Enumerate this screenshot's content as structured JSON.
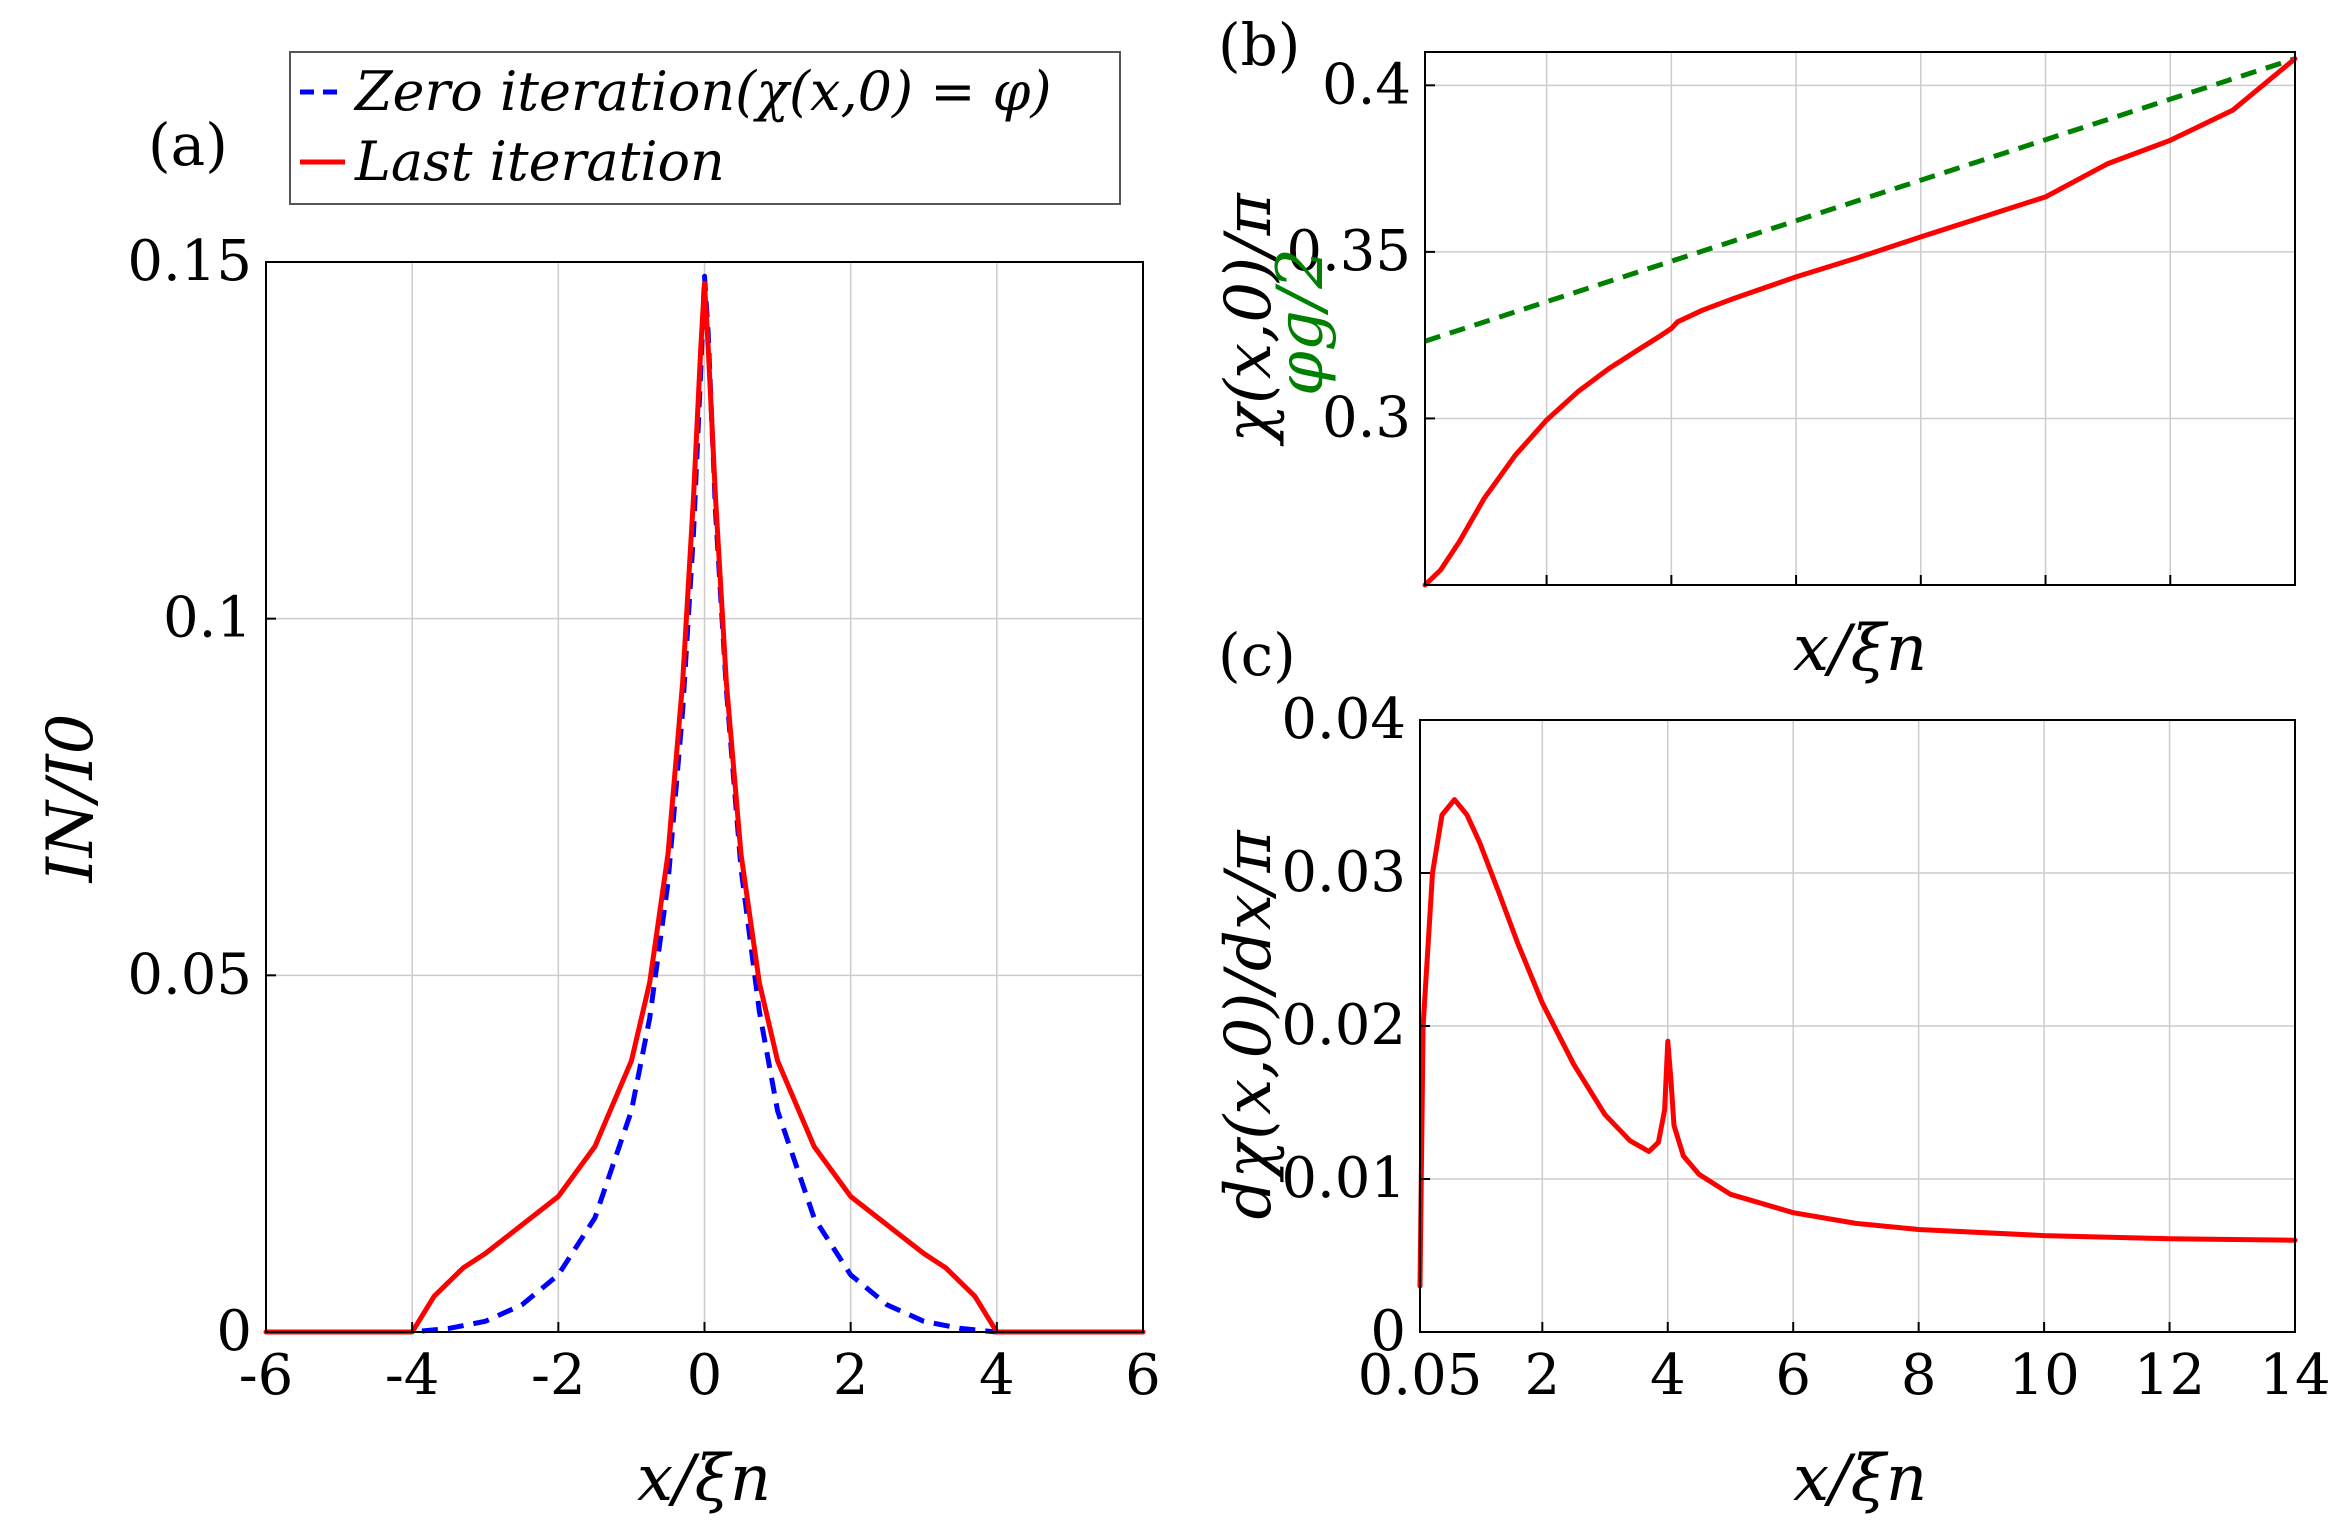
{
  "chart_data": [
    {
      "panel_label": "(a)",
      "type": "line",
      "xlabel": "x/ξn",
      "ylabel": "IN/I0",
      "xlim": [
        -6,
        6
      ],
      "ylim": [
        0,
        0.15
      ],
      "xticks": [
        -6,
        -4,
        -2,
        0,
        2,
        4,
        6
      ],
      "xtick_labels": [
        "-6",
        "-4",
        "-2",
        "0",
        "2",
        "4",
        "6"
      ],
      "yticks": [
        0,
        0.05,
        0.1,
        0.15
      ],
      "ytick_labels": [
        "0",
        "0.05",
        "0.1",
        "0.15"
      ],
      "grid": true,
      "legend": {
        "position": "top",
        "entries": [
          {
            "label": "Zero iteration(χ(x,0) = φ)",
            "color": "#0000ff",
            "style": "dashed"
          },
          {
            "label": "Last iteration",
            "color": "#ff0000",
            "style": "solid"
          }
        ]
      },
      "series": [
        {
          "name": "Zero iteration",
          "color": "#0000ff",
          "style": "dashed",
          "x": [
            -6,
            -4,
            -3.5,
            -3,
            -2.5,
            -2,
            -1.5,
            -1,
            -0.75,
            -0.5,
            -0.3,
            -0.15,
            -0.05,
            0,
            0.05,
            0.15,
            0.3,
            0.5,
            0.75,
            1,
            1.5,
            2,
            2.5,
            3,
            3.5,
            4,
            6
          ],
          "y": [
            0,
            0,
            0.0005,
            0.0015,
            0.0038,
            0.008,
            0.016,
            0.031,
            0.044,
            0.063,
            0.087,
            0.112,
            0.135,
            0.148,
            0.14,
            0.115,
            0.09,
            0.065,
            0.045,
            0.031,
            0.016,
            0.008,
            0.0038,
            0.0015,
            0.0005,
            0,
            0
          ]
        },
        {
          "name": "Last iteration",
          "color": "#ff0000",
          "style": "solid",
          "x": [
            -6,
            -4,
            -3.7,
            -3.3,
            -3,
            -2.5,
            -2,
            -1.5,
            -1,
            -0.75,
            -0.5,
            -0.3,
            -0.15,
            -0.05,
            0,
            0.05,
            0.15,
            0.3,
            0.5,
            0.75,
            1,
            1.5,
            2,
            2.5,
            3,
            3.3,
            3.7,
            4,
            6
          ],
          "y": [
            0,
            0,
            0.005,
            0.009,
            0.011,
            0.015,
            0.019,
            0.026,
            0.038,
            0.049,
            0.067,
            0.091,
            0.117,
            0.138,
            0.147,
            0.138,
            0.117,
            0.091,
            0.067,
            0.049,
            0.038,
            0.026,
            0.019,
            0.015,
            0.011,
            0.009,
            0.005,
            0,
            0
          ]
        }
      ]
    },
    {
      "panel_label": "(b)",
      "type": "line",
      "xlabel": "x/ξn",
      "ylabel": "χ(x,0)/π",
      "xlim": [
        0.05,
        14
      ],
      "ylim": [
        0.25,
        0.41
      ],
      "xticks": [
        0.05,
        2,
        4,
        6,
        8,
        10,
        12,
        14
      ],
      "yticks": [
        0.3,
        0.35,
        0.4
      ],
      "ytick_labels": [
        "0.3",
        "0.35",
        "0.4"
      ],
      "grid": true,
      "annotation": "φg/2",
      "series": [
        {
          "name": "asymptote",
          "color": "#008000",
          "style": "dashed",
          "x": [
            0.05,
            14
          ],
          "y": [
            0.3232,
            0.408
          ]
        },
        {
          "name": "χ",
          "color": "#ff0000",
          "style": "solid",
          "x": [
            0.05,
            0.3,
            0.6,
            1,
            1.5,
            2,
            2.5,
            3,
            3.5,
            3.8,
            4,
            4.1,
            4.5,
            5,
            6,
            7,
            8,
            9,
            10,
            11,
            12,
            13,
            14
          ],
          "y": [
            0.25,
            0.2545,
            0.263,
            0.276,
            0.289,
            0.2995,
            0.308,
            0.315,
            0.321,
            0.3245,
            0.327,
            0.329,
            0.3325,
            0.336,
            0.3425,
            0.3483,
            0.3545,
            0.3605,
            0.3665,
            0.3765,
            0.3835,
            0.3925,
            0.408
          ]
        }
      ]
    },
    {
      "panel_label": "(c)",
      "type": "line",
      "xlabel": "x/ξn",
      "ylabel": "dχ(x,0)/dx/π",
      "xlim": [
        0.05,
        14
      ],
      "ylim": [
        0,
        0.04
      ],
      "xticks": [
        0.05,
        2,
        4,
        6,
        8,
        10,
        12,
        14
      ],
      "xtick_labels": [
        "0.05",
        "2",
        "4",
        "6",
        "8",
        "10",
        "12",
        "14"
      ],
      "yticks": [
        0,
        0.01,
        0.02,
        0.03,
        0.04
      ],
      "ytick_labels": [
        "0",
        "0.01",
        "0.02",
        "0.03",
        "0.04"
      ],
      "grid": true,
      "series": [
        {
          "name": "dχ/dx",
          "color": "#ff0000",
          "style": "solid",
          "x": [
            0.05,
            0.1,
            0.25,
            0.4,
            0.6,
            0.8,
            1.0,
            1.3,
            1.6,
            2,
            2.5,
            3,
            3.4,
            3.7,
            3.85,
            3.95,
            4.0,
            4.05,
            4.1,
            4.25,
            4.5,
            5,
            6,
            7,
            8,
            10,
            12,
            14
          ],
          "y": [
            0.003,
            0.02,
            0.03,
            0.0338,
            0.0348,
            0.0338,
            0.032,
            0.0288,
            0.0255,
            0.0215,
            0.0175,
            0.0142,
            0.0125,
            0.0118,
            0.0124,
            0.0145,
            0.019,
            0.0165,
            0.0135,
            0.0115,
            0.0103,
            0.009,
            0.0078,
            0.0071,
            0.0067,
            0.0063,
            0.0061,
            0.006
          ]
        }
      ]
    }
  ]
}
